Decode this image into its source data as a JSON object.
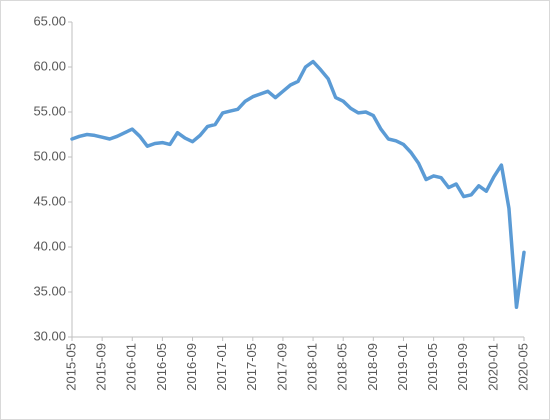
{
  "chart_data": {
    "type": "line",
    "categories": [
      "2015-05",
      null,
      null,
      null,
      "2015-09",
      null,
      null,
      null,
      "2016-01",
      null,
      null,
      null,
      "2016-05",
      null,
      null,
      null,
      "2016-09",
      null,
      null,
      null,
      "2017-01",
      null,
      null,
      null,
      "2017-05",
      null,
      null,
      null,
      "2017-09",
      null,
      null,
      null,
      "2018-01",
      null,
      null,
      null,
      "2018-05",
      null,
      null,
      null,
      "2018-09",
      null,
      null,
      null,
      "2019-01",
      null,
      null,
      null,
      "2019-05",
      null,
      null,
      null,
      "2019-09",
      null,
      null,
      null,
      "2020-01",
      null,
      null,
      null,
      "2020-05"
    ],
    "values": [
      52.0,
      52.3,
      52.5,
      52.4,
      52.2,
      52.0,
      52.3,
      52.7,
      53.1,
      52.3,
      51.2,
      51.5,
      51.6,
      51.4,
      52.7,
      52.1,
      51.7,
      52.4,
      53.4,
      53.6,
      54.9,
      55.1,
      55.3,
      56.2,
      56.7,
      57.0,
      57.3,
      56.6,
      57.3,
      58.0,
      58.4,
      60.0,
      60.6,
      59.7,
      58.7,
      56.6,
      56.2,
      55.4,
      54.9,
      55.0,
      54.6,
      53.1,
      52.0,
      51.8,
      51.4,
      50.5,
      49.3,
      47.5,
      47.9,
      47.7,
      46.6,
      47.0,
      45.6,
      45.8,
      46.8,
      46.2,
      47.8,
      49.1,
      44.3,
      33.3,
      39.4
    ],
    "color": "#5b9bd5",
    "ylim": [
      30,
      65
    ],
    "yticks": [
      {
        "value": 30,
        "label": "30.00"
      },
      {
        "value": 35,
        "label": "35.00"
      },
      {
        "value": 40,
        "label": "40.00"
      },
      {
        "value": 45,
        "label": "45.00"
      },
      {
        "value": 50,
        "label": "50.00"
      },
      {
        "value": 55,
        "label": "55.00"
      },
      {
        "value": 60,
        "label": "60.00"
      },
      {
        "value": 65,
        "label": "65.00"
      }
    ],
    "grid": false
  }
}
